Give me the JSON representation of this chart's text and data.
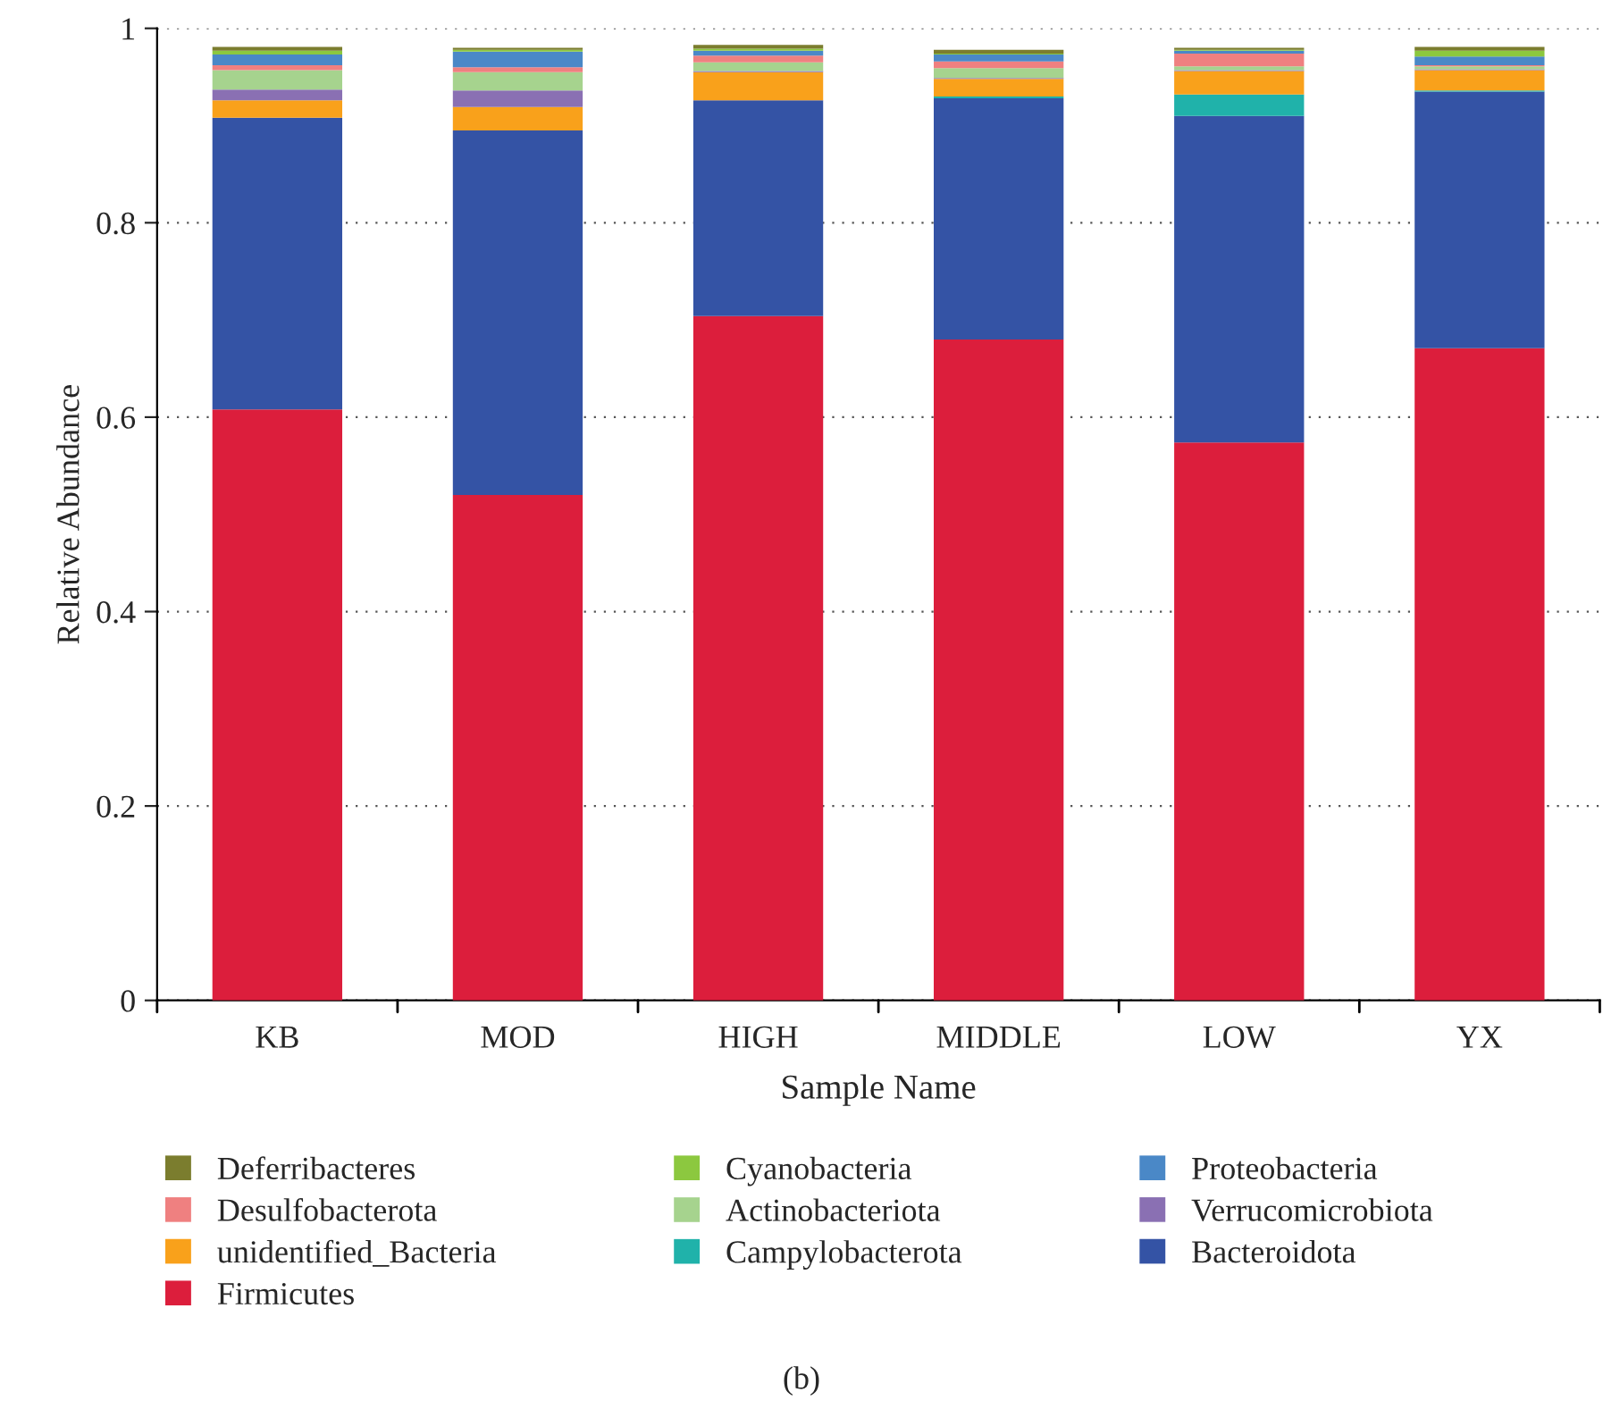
{
  "chart_data": {
    "type": "bar",
    "stacked": true,
    "xlabel": "Sample Name",
    "ylabel": "Relative Abundance",
    "categories": [
      "KB",
      "MOD",
      "HIGH",
      "MIDDLE",
      "LOW",
      "YX"
    ],
    "series": [
      {
        "name": "Firmicutes",
        "color": "#dc1e3c",
        "values": [
          0.608,
          0.52,
          0.704,
          0.68,
          0.574,
          0.671
        ]
      },
      {
        "name": "Bacteroidota",
        "color": "#3453a5",
        "values": [
          0.3,
          0.375,
          0.222,
          0.248,
          0.336,
          0.264
        ]
      },
      {
        "name": "Campylobacterota",
        "color": "#20b2aa",
        "values": [
          0,
          0,
          0,
          0.002,
          0.022,
          0.001
        ]
      },
      {
        "name": "unidentified_Bacteria",
        "color": "#f9a11b",
        "values": [
          0.018,
          0.024,
          0.029,
          0.018,
          0.024,
          0.021
        ]
      },
      {
        "name": "Verrucomicrobiota",
        "color": "#8a70b3",
        "values": [
          0.011,
          0.017,
          0.001,
          0.001,
          0.001,
          0.001
        ]
      },
      {
        "name": "Actinobacteriota",
        "color": "#a6d38e",
        "values": [
          0.02,
          0.019,
          0.009,
          0.01,
          0.004,
          0.003
        ]
      },
      {
        "name": "Desulfobacterota",
        "color": "#ef8080",
        "values": [
          0.005,
          0.005,
          0.007,
          0.007,
          0.013,
          0.001
        ]
      },
      {
        "name": "Proteobacteria",
        "color": "#4a88c7",
        "values": [
          0.011,
          0.016,
          0.005,
          0.007,
          0.003,
          0.009
        ]
      },
      {
        "name": "Cyanobacteria",
        "color": "#8cc83f",
        "values": [
          0.004,
          0.002,
          0.002,
          0.001,
          0.001,
          0.006
        ]
      },
      {
        "name": "Deferribacteres",
        "color": "#7b7d2e",
        "values": [
          0.004,
          0.002,
          0.004,
          0.004,
          0.002,
          0.004
        ]
      }
    ],
    "ylim": [
      0,
      1
    ],
    "yticks": [
      0,
      0.2,
      0.4,
      0.6,
      0.8,
      1
    ],
    "grid": "y",
    "legend": "bottom",
    "annotations": [
      "(b)"
    ]
  }
}
